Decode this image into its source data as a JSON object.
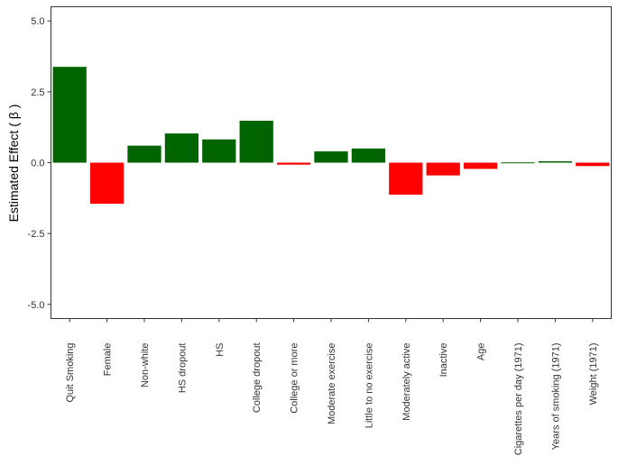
{
  "chart_data": {
    "type": "bar",
    "ylabel": "Estimated Effect ( β )",
    "xlabel": "",
    "ylim": [
      -5.5,
      5.5
    ],
    "yticks": [
      5.0,
      2.5,
      0.0,
      -2.5,
      -5.0
    ],
    "ytick_labels": [
      "5.0",
      "2.5",
      "0.0",
      "-2.5",
      "-5.0"
    ],
    "grid": false,
    "categories": [
      "Quit Smoking",
      "Female",
      "Non-white",
      "HS dropout",
      "HS",
      "College dropout",
      "College or more",
      "Moderate exercise",
      "Little to no exercise",
      "Moderately active",
      "Inactive",
      "Age",
      "Cigarettes per day (1971)",
      "Years of smoking (1971)",
      "Weight (1971)"
    ],
    "values": [
      3.38,
      -1.45,
      0.6,
      1.03,
      0.82,
      1.48,
      -0.07,
      0.4,
      0.5,
      -1.13,
      -0.45,
      -0.22,
      0.01,
      0.05,
      -0.12
    ],
    "colors": {
      "positive": "#006400",
      "negative": "#ff0000"
    }
  }
}
